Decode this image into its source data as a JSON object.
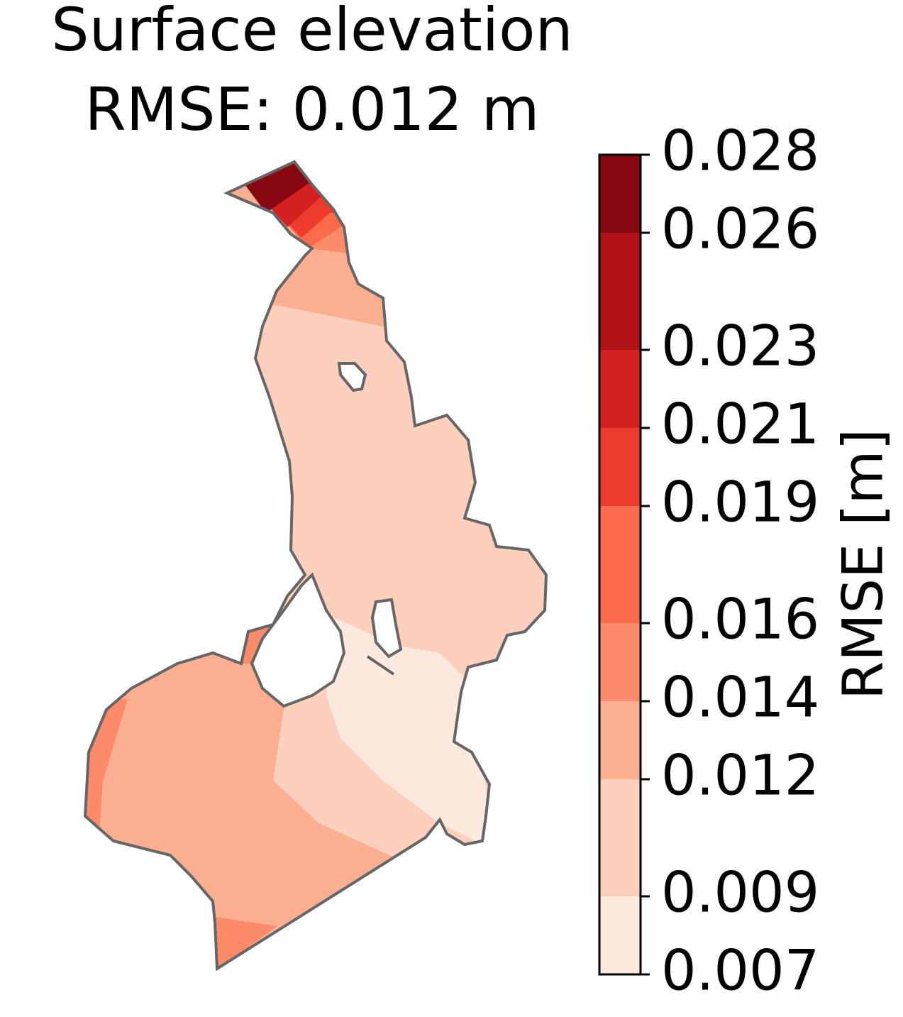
{
  "chart_data": {
    "type": "map",
    "title": [
      "Surface elevation",
      "RMSE: 0.012 m"
    ],
    "colorbar": {
      "label": "RMSE [m]",
      "lim": [
        0.007,
        0.028
      ],
      "ticks": [
        0.007,
        0.009,
        0.012,
        0.014,
        0.016,
        0.019,
        0.021,
        0.023,
        0.026,
        0.028
      ],
      "colors": [
        "#fee9df",
        "#fcd0bc",
        "#fcae91",
        "#fc8b6a",
        "#fb6a4a",
        "#ef3b2c",
        "#d42020",
        "#b11218",
        "#860811"
      ]
    }
  }
}
